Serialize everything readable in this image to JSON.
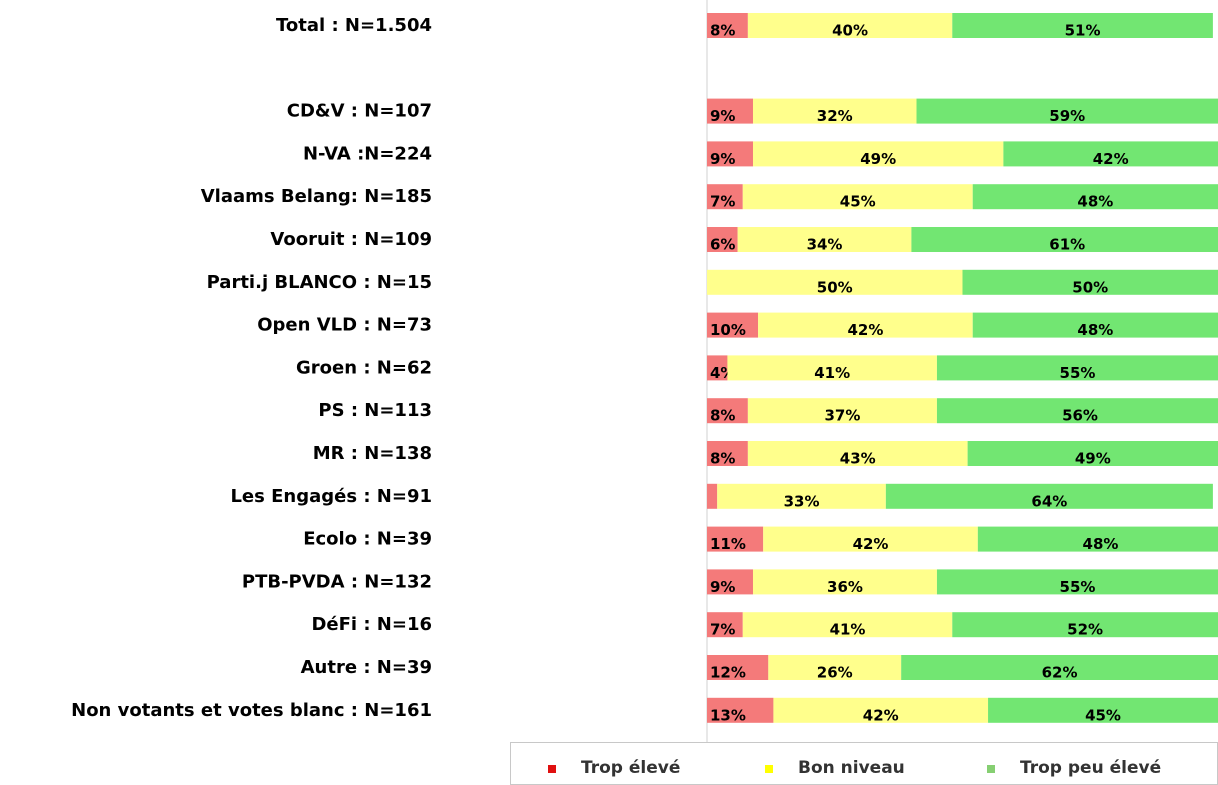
{
  "chart_data": {
    "type": "stacked-bar-horizontal",
    "categories": [
      "Total : N=1.504",
      null,
      "CD&V : N=107",
      "N-VA :N=224",
      "Vlaams Belang: N=185",
      "Vooruit : N=109",
      "Parti.j BLANCO : N=15",
      "Open VLD : N=73",
      "Groen : N=62",
      "PS : N=113",
      "MR : N=138",
      "Les Engagés : N=91",
      "Ecolo : N=39",
      "PTB-PVDA : N=132",
      "DéFi : N=16",
      "Autre : N=39",
      "Non votants et votes blanc  : N=161"
    ],
    "xlim": [
      0,
      100
    ],
    "legend": "bottom",
    "series": [
      {
        "name": "Trop élevé",
        "color": "#f47a7a",
        "legend_color": "#e01010",
        "values": [
          8,
          null,
          9,
          9,
          7,
          6,
          0,
          10,
          4,
          8,
          8,
          2,
          11,
          9,
          7,
          12,
          13
        ],
        "value_labels": [
          "8%",
          null,
          "9%",
          "9%",
          "7%",
          "6%",
          null,
          "10%",
          "4%",
          "8%",
          "8%",
          null,
          "11%",
          "9%",
          "7%",
          "12%",
          "13%"
        ]
      },
      {
        "name": "Bon niveau",
        "color": "#ffff8c",
        "legend_color": "#ffff00",
        "values": [
          40,
          null,
          32,
          49,
          45,
          34,
          50,
          42,
          41,
          37,
          43,
          33,
          42,
          36,
          41,
          26,
          42
        ],
        "value_labels": [
          "40%",
          null,
          "32%",
          "49%",
          "45%",
          "34%",
          "50%",
          "42%",
          "41%",
          "37%",
          "43%",
          "33%",
          "42%",
          "36%",
          "41%",
          "26%",
          "42%"
        ]
      },
      {
        "name": "Trop peu élevé",
        "color": "#72e672",
        "legend_color": "#86cf72",
        "values": [
          51,
          null,
          59,
          42,
          48,
          61,
          50,
          48,
          55,
          56,
          49,
          64,
          48,
          55,
          52,
          62,
          45
        ],
        "value_labels": [
          "51%",
          null,
          "59%",
          "42%",
          "48%",
          "61%",
          "50%",
          "48%",
          "55%",
          "56%",
          "49%",
          "64%",
          "48%",
          "55%",
          "52%",
          "62%",
          "45%"
        ]
      }
    ]
  }
}
